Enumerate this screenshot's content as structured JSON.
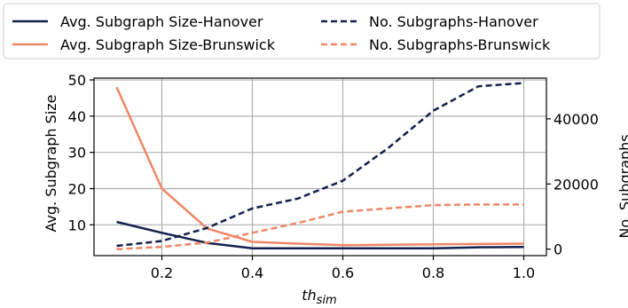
{
  "chart_data": {
    "type": "line",
    "x": [
      0.1,
      0.2,
      0.3,
      0.4,
      0.5,
      0.6,
      0.7,
      0.8,
      0.9,
      1.0
    ],
    "xlabel_main": "th",
    "xlabel_sub": "sim",
    "ylabel_left": "Avg. Subgraph Size",
    "ylabel_right": "No. Subgraphs",
    "xlim": [
      0.05,
      1.05
    ],
    "ylim_left": [
      1.5,
      50.5
    ],
    "ylim_right": [
      -2000,
      52500
    ],
    "xticks": [
      0.2,
      0.4,
      0.6,
      0.8,
      1.0
    ],
    "xtick_labels": [
      "0.2",
      "0.4",
      "0.6",
      "0.8",
      "1.0"
    ],
    "yticks_left": [
      10,
      20,
      30,
      40,
      50
    ],
    "ytick_labels_left": [
      "10",
      "20",
      "30",
      "40",
      "50"
    ],
    "yticks_right": [
      0,
      20000,
      40000
    ],
    "ytick_labels_right": [
      "0",
      "20000",
      "40000"
    ],
    "grid": true,
    "legend_placement": "top (outside, 2 columns)",
    "series": [
      {
        "name": "Avg. Subgraph Size-Hanover",
        "axis": "left",
        "style": "solid",
        "color": "#13204d",
        "values": [
          10.8,
          7.8,
          5.0,
          3.5,
          3.5,
          3.5,
          3.5,
          3.5,
          3.8,
          3.9
        ]
      },
      {
        "name": "Avg. Subgraph Size-Brunswick",
        "axis": "left",
        "style": "solid",
        "color": "#ef8767",
        "values": [
          48.0,
          20.0,
          9.0,
          5.3,
          4.8,
          4.4,
          4.5,
          4.6,
          4.7,
          4.8
        ]
      },
      {
        "name": "No. Subgraphs-Hanover",
        "axis": "right",
        "style": "dashed",
        "color": "#13204d",
        "values": [
          1000,
          2500,
          6500,
          12500,
          15500,
          21000,
          31000,
          42500,
          50000,
          51000
        ]
      },
      {
        "name": "No. Subgraphs-Brunswick",
        "axis": "right",
        "style": "dashed",
        "color": "#ef8767",
        "values": [
          0,
          700,
          2000,
          5000,
          8000,
          11500,
          12500,
          13500,
          13700,
          13700
        ]
      }
    ]
  }
}
